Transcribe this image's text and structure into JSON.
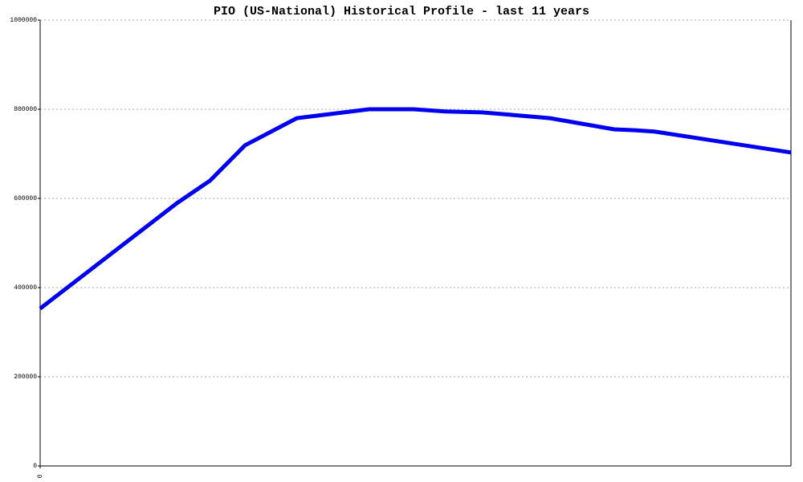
{
  "chart_data": {
    "type": "line",
    "title": "PIO (US-National) Historical Profile - last 11 years",
    "x": [
      0,
      2.0,
      2.49,
      3.0,
      3.76,
      4.82,
      5.47,
      5.94,
      6.47,
      6.94,
      7.47,
      8.41,
      8.71,
      9.0,
      11
    ],
    "series": [
      {
        "name": "PIO",
        "color": "#0000ee",
        "values": [
          353000,
          589000,
          640000,
          719000,
          780000,
          800000,
          800000,
          795000,
          793000,
          787000,
          780000,
          755000,
          753000,
          750000,
          703000
        ]
      }
    ],
    "xlim": [
      0,
      11
    ],
    "xticks": [
      0
    ],
    "ylim": [
      0,
      1000000
    ],
    "yticks": [
      0,
      200000,
      400000,
      600000,
      800000,
      1000000
    ],
    "grid": true
  }
}
